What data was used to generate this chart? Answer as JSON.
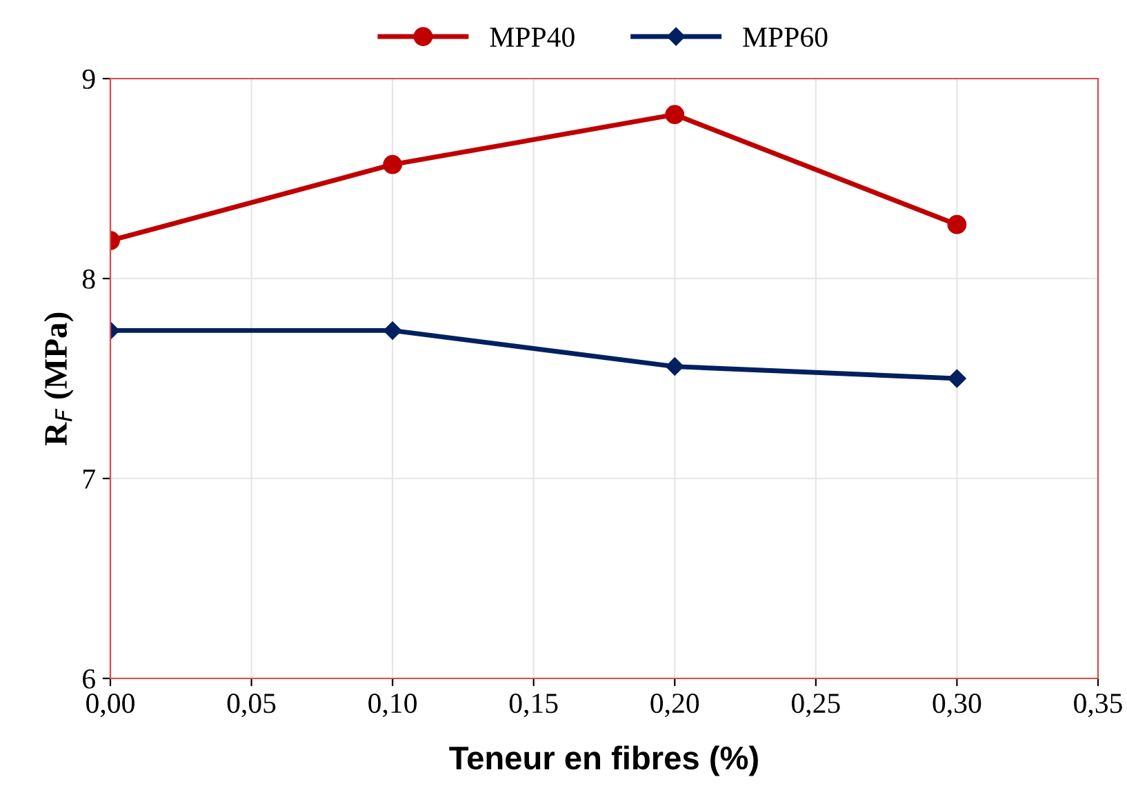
{
  "chart_data": {
    "type": "line",
    "xlabel": "Teneur en fibres (%)",
    "ylabel": "R$_{F}$ (MPa)",
    "x": [
      0.0,
      0.1,
      0.2,
      0.3
    ],
    "series": [
      {
        "name": "MPP40",
        "color": "#c00000",
        "values": [
          8.19,
          8.57,
          8.82,
          8.27
        ],
        "marker": "circle"
      },
      {
        "name": "MPP60",
        "color": "#002060",
        "values": [
          7.74,
          7.74,
          7.56,
          7.5
        ],
        "marker": "diamond"
      }
    ],
    "xlim": [
      0,
      0.35
    ],
    "ylim": [
      6,
      9
    ],
    "xticks": [
      {
        "value": 0,
        "label": "0,00"
      },
      {
        "value": 0.05,
        "label": "0,05"
      },
      {
        "value": 0.1,
        "label": "0,10"
      },
      {
        "value": 0.15,
        "label": "0,15"
      },
      {
        "value": 0.2,
        "label": "0,20"
      },
      {
        "value": 0.25,
        "label": "0,25"
      },
      {
        "value": 0.3,
        "label": "0,30"
      },
      {
        "value": 0.35,
        "label": "0,35"
      }
    ],
    "yticks": [
      6,
      7,
      8,
      9
    ],
    "grid": true,
    "legend": "top",
    "line_style": "solid"
  }
}
